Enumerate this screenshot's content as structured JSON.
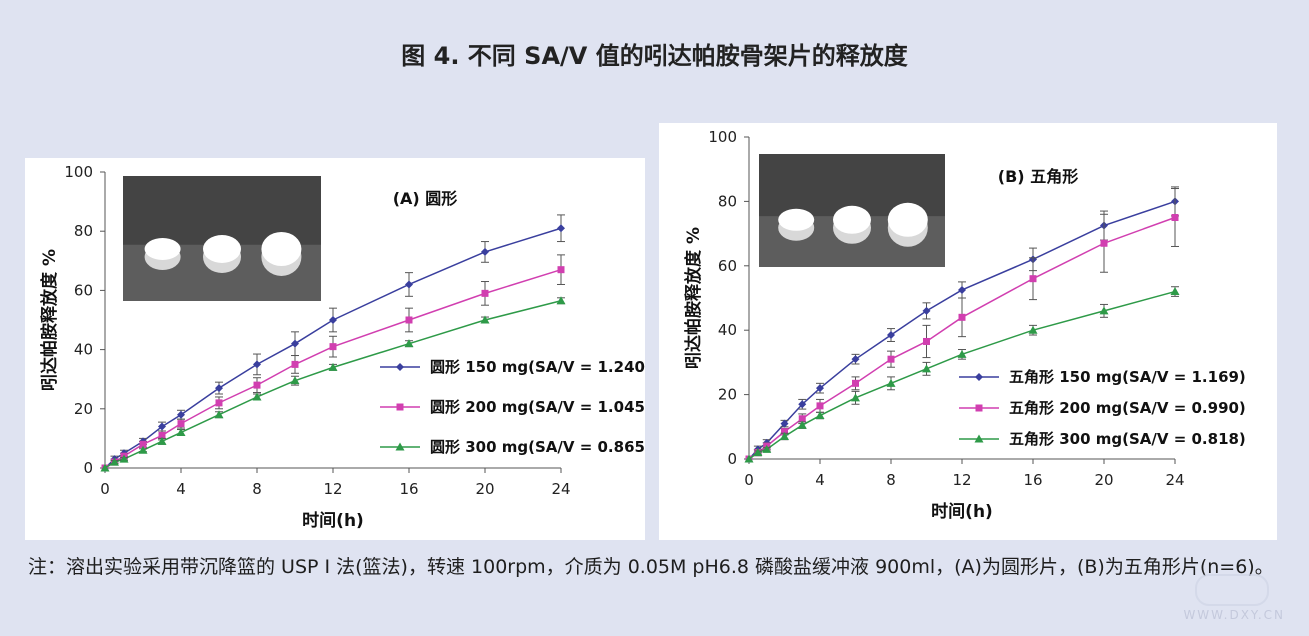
{
  "figure_title": "图 4.  不同 SA/V 值的吲达帕胺骨架片的释放度",
  "note": "注：溶出实验采用带沉降篮的 USP I 法(篮法)，转速 100rpm，介质为 0.05M pH6.8 磷酸盐缓冲液 900ml，(A)为圆形片，(B)为五角形片(n=6)。",
  "watermark": "WWW.DXY.CN",
  "colors": {
    "s150": "#3a3f9e",
    "s200": "#d13fb0",
    "s300": "#2e9a48"
  },
  "chart_data": [
    {
      "type": "line",
      "title": "(A) 圆形",
      "xlabel": "时间(h)",
      "ylabel": "吲达帕胺释放度 %",
      "xlim": [
        0,
        24
      ],
      "ylim": [
        0,
        100
      ],
      "xticks": [
        0,
        4,
        8,
        12,
        16,
        20,
        24
      ],
      "yticks": [
        0,
        20,
        40,
        60,
        80,
        100
      ],
      "legend_position": "bottom-right",
      "inset": "tablet-photo",
      "x": [
        0,
        0.5,
        1,
        2,
        3,
        4,
        6,
        8,
        10,
        12,
        16,
        20,
        24
      ],
      "series": [
        {
          "name": "圆形 150 mg(SA/V = 1.240)",
          "marker": "diamond",
          "values": [
            0,
            3,
            5,
            9,
            14,
            18,
            27,
            35,
            42,
            50,
            62,
            73,
            81
          ],
          "errors": [
            0,
            1,
            1,
            1,
            1.5,
            1.5,
            2,
            3.5,
            4,
            4,
            4,
            3.5,
            4.5
          ]
        },
        {
          "name": "圆形 200 mg(SA/V = 1.045)",
          "marker": "square",
          "values": [
            0,
            2,
            4,
            8,
            11,
            15,
            22,
            28,
            35,
            41,
            50,
            59,
            67
          ],
          "errors": [
            0,
            1,
            1,
            1,
            1.5,
            1.5,
            2,
            2.5,
            3,
            3.5,
            4,
            4,
            5
          ]
        },
        {
          "name": "圆形 300 mg(SA/V = 0.865)",
          "marker": "triangle",
          "values": [
            0,
            2,
            3,
            6,
            9,
            12,
            18,
            24,
            29.5,
            34,
            42,
            50,
            56.5
          ],
          "errors": [
            0,
            0.5,
            0.5,
            0.5,
            1,
            1,
            1,
            1,
            1.5,
            1,
            1,
            1,
            1
          ]
        }
      ]
    },
    {
      "type": "line",
      "title": "(B) 五角形",
      "xlabel": "时间(h)",
      "ylabel": "吲达帕胺释放度 %",
      "xlim": [
        0,
        24
      ],
      "ylim": [
        0,
        100
      ],
      "xticks": [
        0,
        4,
        8,
        12,
        16,
        20,
        24
      ],
      "yticks": [
        0,
        20,
        40,
        60,
        80,
        100
      ],
      "legend_position": "bottom-right",
      "inset": "tablet-photo",
      "x": [
        0,
        0.5,
        1,
        2,
        3,
        4,
        6,
        8,
        10,
        12,
        16,
        20,
        24
      ],
      "series": [
        {
          "name": "五角形 150 mg(SA/V = 1.169)",
          "marker": "diamond",
          "values": [
            0,
            3,
            5,
            11,
            17,
            22,
            31,
            38.5,
            46,
            52.5,
            62,
            72.5,
            80
          ],
          "errors": [
            0,
            1,
            1,
            1,
            1.5,
            1.5,
            1.5,
            2,
            2.5,
            2.5,
            3.5,
            4.5,
            4.5
          ]
        },
        {
          "name": "五角形 200 mg(SA/V = 0.990)",
          "marker": "square",
          "values": [
            0,
            2,
            4,
            8.5,
            12.5,
            16.5,
            23.5,
            31,
            36.5,
            44,
            56,
            67,
            75
          ],
          "errors": [
            0,
            1,
            1,
            1,
            1.5,
            2,
            2,
            2.5,
            5,
            6,
            6.5,
            9,
            9
          ]
        },
        {
          "name": "五角形 300 mg(SA/V = 0.818)",
          "marker": "triangle",
          "values": [
            0,
            2,
            3,
            7,
            10.5,
            13.5,
            19,
            23.5,
            28,
            32.5,
            40,
            46,
            52
          ],
          "errors": [
            0,
            0.5,
            0.5,
            1,
            1,
            1,
            2,
            2,
            2,
            1.5,
            1.5,
            2,
            1.5
          ]
        }
      ]
    }
  ]
}
